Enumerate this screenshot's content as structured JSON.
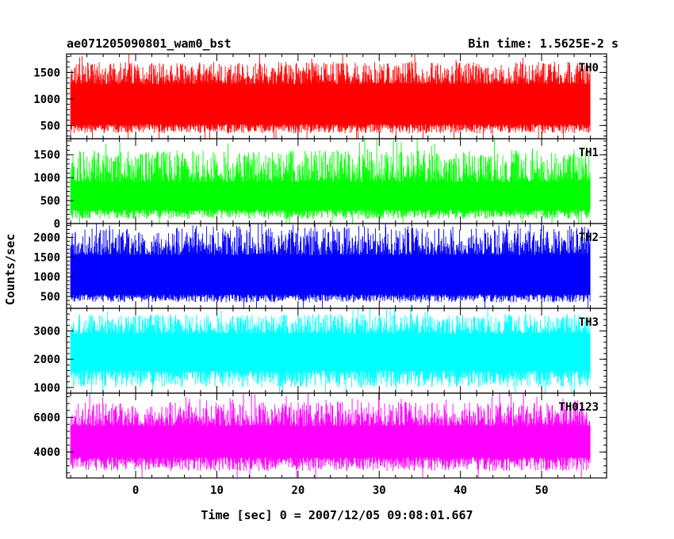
{
  "chart_data": {
    "type": "line",
    "title_left": "ae071205090801_wam0_bst",
    "title_right": "Bin time: 1.5625E-2 s",
    "xlabel": "Time [sec] 0 = 2007/12/05 09:08:01.667",
    "ylabel": "Counts/sec",
    "xlim": [
      -8.5,
      58
    ],
    "x_ticks": [
      0,
      10,
      20,
      30,
      40,
      50
    ],
    "data_xrange": [
      -8,
      56
    ],
    "grid": false,
    "panels": [
      {
        "name": "TH0",
        "color": "#ff0000",
        "ylim": [
          250,
          1850
        ],
        "y_ticks": [
          500,
          1000,
          1500
        ],
        "envelope": {
          "low": 350,
          "core_low": 520,
          "core_high": 1280,
          "high": 1700
        }
      },
      {
        "name": "TH1",
        "color": "#00ff00",
        "ylim": [
          0,
          1850
        ],
        "y_ticks": [
          0,
          500,
          1000,
          1500
        ],
        "envelope": {
          "low": 100,
          "core_low": 300,
          "core_high": 900,
          "high": 1600
        }
      },
      {
        "name": "TH2",
        "color": "#0000ff",
        "ylim": [
          200,
          2350
        ],
        "y_ticks": [
          500,
          1000,
          1500,
          2000
        ],
        "envelope": {
          "low": 350,
          "core_low": 550,
          "core_high": 1550,
          "high": 2250
        }
      },
      {
        "name": "TH3",
        "color": "#00ffff",
        "ylim": [
          800,
          3800
        ],
        "y_ticks": [
          1000,
          2000,
          3000
        ],
        "envelope": {
          "low": 1000,
          "core_low": 1600,
          "core_high": 2900,
          "high": 3600
        }
      },
      {
        "name": "TH0123",
        "color": "#ff00ff",
        "ylim": [
          2500,
          7400
        ],
        "y_ticks": [
          4000,
          6000
        ],
        "envelope": {
          "low": 2900,
          "core_low": 3700,
          "core_high": 5500,
          "high": 6900
        }
      }
    ]
  }
}
